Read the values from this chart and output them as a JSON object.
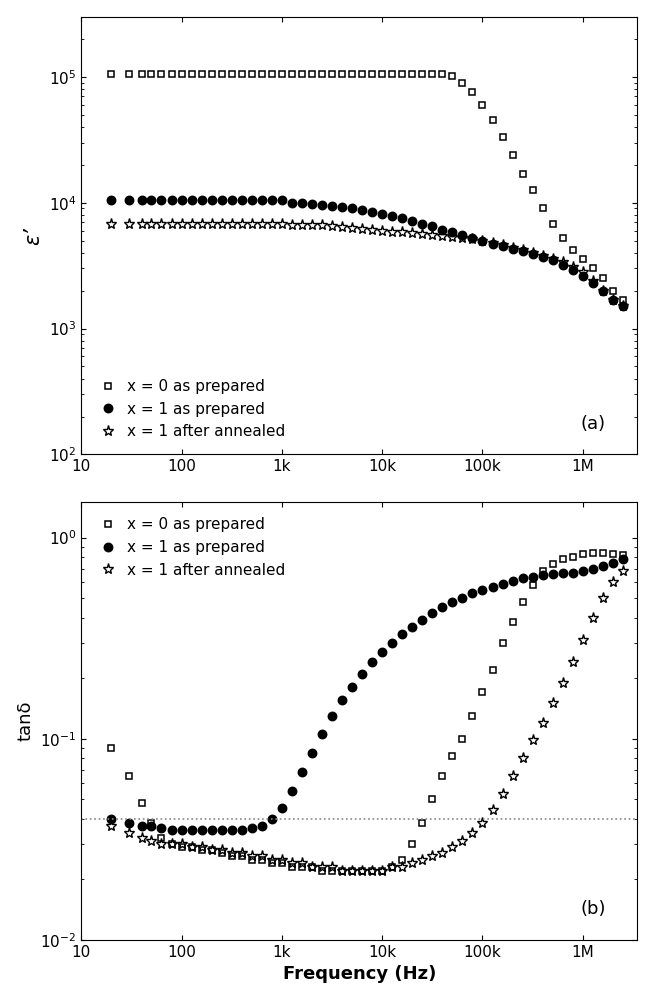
{
  "title_a": "(a)",
  "title_b": "(b)",
  "xlabel": "Frequency (Hz)",
  "ylabel_a": "ε’",
  "ylabel_b": "tanδ",
  "legend_labels": [
    "x = 0 as prepared",
    "x = 1 as prepared",
    "x = 1 after annealed"
  ],
  "freq_a_s1": [
    20,
    30,
    40,
    50,
    63,
    80,
    100,
    126,
    158,
    200,
    251,
    316,
    398,
    501,
    631,
    794,
    1000,
    1259,
    1585,
    1995,
    2512,
    3162,
    3981,
    5012,
    6310,
    7943,
    10000,
    12589,
    15849,
    19953,
    25119,
    31623,
    39811,
    50119,
    63096,
    79433,
    100000,
    125893,
    158489,
    199526,
    251189,
    316228,
    398107,
    501187,
    630957,
    794328,
    1000000,
    1258925,
    1584893,
    1995262,
    2511886
  ],
  "eps_a_s1": [
    105000.0,
    105000.0,
    105000.0,
    105000.0,
    105000.0,
    105000.0,
    105000.0,
    105000.0,
    105000.0,
    105000.0,
    105000.0,
    105000.0,
    105000.0,
    105000.0,
    105000.0,
    105000.0,
    105000.0,
    105000.0,
    105000.0,
    105000.0,
    105000.0,
    105000.0,
    105000.0,
    105000.0,
    105000.0,
    105000.0,
    105000.0,
    105000.0,
    105000.0,
    105000.0,
    105000.0,
    105000.0,
    105000.0,
    102000.0,
    90000.0,
    75000.0,
    60000.0,
    45000.0,
    33000.0,
    24000.0,
    17000.0,
    12500.0,
    9000,
    6800,
    5200,
    4200,
    3600,
    3000,
    2500,
    2000,
    1700
  ],
  "freq_a_s2": [
    20,
    30,
    40,
    50,
    63,
    80,
    100,
    126,
    158,
    200,
    251,
    316,
    398,
    501,
    631,
    794,
    1000,
    1259,
    1585,
    1995,
    2512,
    3162,
    3981,
    5012,
    6310,
    7943,
    10000,
    12589,
    15849,
    19953,
    25119,
    31623,
    39811,
    50119,
    63096,
    79433,
    100000,
    125893,
    158489,
    199526,
    251189,
    316228,
    398107,
    501187,
    630957,
    794328,
    1000000,
    1258925,
    1584893,
    1995262,
    2511886
  ],
  "eps_a_s2": [
    10500.0,
    10500.0,
    10500.0,
    10500.0,
    10500.0,
    10500.0,
    10500.0,
    10500.0,
    10500.0,
    10500.0,
    10500.0,
    10500.0,
    10500.0,
    10500.0,
    10500.0,
    10500.0,
    10500.0,
    10000.0,
    10000.0,
    9800,
    9600,
    9400,
    9200,
    9000,
    8800,
    8500,
    8200,
    7900,
    7600,
    7200,
    6800,
    6500,
    6100,
    5800,
    5500,
    5200,
    5000,
    4700,
    4500,
    4300,
    4100,
    3900,
    3700,
    3500,
    3200,
    2900,
    2600,
    2300,
    2000,
    1700,
    1500
  ],
  "freq_a_s3": [
    20,
    30,
    40,
    50,
    63,
    80,
    100,
    126,
    158,
    200,
    251,
    316,
    398,
    501,
    631,
    794,
    1000,
    1259,
    1585,
    1995,
    2512,
    3162,
    3981,
    5012,
    6310,
    7943,
    10000,
    12589,
    15849,
    19953,
    25119,
    31623,
    39811,
    50119,
    63096,
    79433,
    100000,
    125893,
    158489,
    199526,
    251189,
    316228,
    398107,
    501187,
    630957,
    794328,
    1000000,
    1258925,
    1584893,
    1995262,
    2511886
  ],
  "eps_a_s3": [
    6800,
    6800,
    6800,
    6800,
    6800,
    6800,
    6800,
    6800,
    6800,
    6800,
    6800,
    6800,
    6800,
    6800,
    6800,
    6800,
    6800,
    6700,
    6700,
    6600,
    6600,
    6500,
    6400,
    6300,
    6200,
    6100,
    6000,
    5900,
    5800,
    5700,
    5600,
    5500,
    5400,
    5300,
    5200,
    5100,
    5000,
    4800,
    4600,
    4400,
    4200,
    4000,
    3800,
    3600,
    3400,
    3100,
    2800,
    2400,
    2000,
    1700,
    1500
  ],
  "freq_b_s1": [
    20,
    30,
    40,
    50,
    63,
    80,
    100,
    126,
    158,
    200,
    251,
    316,
    398,
    501,
    631,
    794,
    1000,
    1259,
    1585,
    1995,
    2512,
    3162,
    3981,
    5012,
    6310,
    7943,
    10000,
    12589,
    15849,
    19953,
    25119,
    31623,
    39811,
    50119,
    63096,
    79433,
    100000,
    125893,
    158489,
    199526,
    251189,
    316228,
    398107,
    501187,
    630957,
    794328,
    1000000,
    1258925,
    1584893,
    1995262,
    2511886
  ],
  "tan_b_s1": [
    0.09,
    0.065,
    0.048,
    0.038,
    0.032,
    0.03,
    0.029,
    0.029,
    0.028,
    0.028,
    0.027,
    0.026,
    0.026,
    0.025,
    0.025,
    0.024,
    0.024,
    0.023,
    0.023,
    0.023,
    0.022,
    0.022,
    0.022,
    0.022,
    0.022,
    0.022,
    0.022,
    0.023,
    0.025,
    0.03,
    0.038,
    0.05,
    0.065,
    0.082,
    0.1,
    0.13,
    0.17,
    0.22,
    0.3,
    0.38,
    0.48,
    0.58,
    0.68,
    0.74,
    0.78,
    0.8,
    0.83,
    0.84,
    0.84,
    0.83,
    0.82
  ],
  "freq_b_s2": [
    20,
    30,
    40,
    50,
    63,
    80,
    100,
    126,
    158,
    200,
    251,
    316,
    398,
    501,
    631,
    794,
    1000,
    1259,
    1585,
    1995,
    2512,
    3162,
    3981,
    5012,
    6310,
    7943,
    10000,
    12589,
    15849,
    19953,
    25119,
    31623,
    39811,
    50119,
    63096,
    79433,
    100000,
    125893,
    158489,
    199526,
    251189,
    316228,
    398107,
    501187,
    630957,
    794328,
    1000000,
    1258925,
    1584893,
    1995262,
    2511886
  ],
  "tan_b_s2": [
    0.04,
    0.038,
    0.037,
    0.037,
    0.036,
    0.035,
    0.035,
    0.035,
    0.035,
    0.035,
    0.035,
    0.035,
    0.035,
    0.036,
    0.037,
    0.04,
    0.045,
    0.055,
    0.068,
    0.085,
    0.105,
    0.13,
    0.155,
    0.18,
    0.21,
    0.24,
    0.27,
    0.3,
    0.33,
    0.36,
    0.39,
    0.42,
    0.45,
    0.48,
    0.5,
    0.53,
    0.55,
    0.57,
    0.59,
    0.61,
    0.63,
    0.64,
    0.65,
    0.66,
    0.67,
    0.67,
    0.68,
    0.7,
    0.72,
    0.75,
    0.78
  ],
  "freq_b_s3": [
    20,
    30,
    40,
    50,
    63,
    80,
    100,
    126,
    158,
    200,
    251,
    316,
    398,
    501,
    631,
    794,
    1000,
    1259,
    1585,
    1995,
    2512,
    3162,
    3981,
    5012,
    6310,
    7943,
    10000,
    12589,
    15849,
    19953,
    25119,
    31623,
    39811,
    50119,
    63096,
    79433,
    100000,
    125893,
    158489,
    199526,
    251189,
    316228,
    398107,
    501187,
    630957,
    794328,
    1000000,
    1258925,
    1584893,
    1995262,
    2511886
  ],
  "tan_b_s3": [
    0.037,
    0.034,
    0.032,
    0.031,
    0.03,
    0.03,
    0.03,
    0.029,
    0.029,
    0.028,
    0.028,
    0.027,
    0.027,
    0.026,
    0.026,
    0.025,
    0.025,
    0.024,
    0.024,
    0.023,
    0.023,
    0.023,
    0.022,
    0.022,
    0.022,
    0.022,
    0.022,
    0.023,
    0.023,
    0.024,
    0.025,
    0.026,
    0.027,
    0.029,
    0.031,
    0.034,
    0.038,
    0.044,
    0.053,
    0.065,
    0.08,
    0.098,
    0.12,
    0.15,
    0.19,
    0.24,
    0.31,
    0.4,
    0.5,
    0.6,
    0.68
  ],
  "dotted_line_y": 0.04,
  "background_color": "#ffffff",
  "marker_s1": "s",
  "marker_s2": "o",
  "marker_s3": "*",
  "color_s1": "#000000",
  "color_s2": "#000000",
  "color_s3": "#000000",
  "markersize_s1": 5,
  "markersize_s2": 6,
  "markersize_s3": 8,
  "xticks": [
    10,
    100,
    1000,
    10000,
    100000,
    1000000
  ],
  "xlabels": [
    "10",
    "100",
    "1k",
    "10k",
    "100k",
    "1M"
  ],
  "xlim": [
    12,
    3500000
  ],
  "ylim_a": [
    100,
    300000
  ],
  "ylim_b": [
    0.01,
    1.5
  ]
}
